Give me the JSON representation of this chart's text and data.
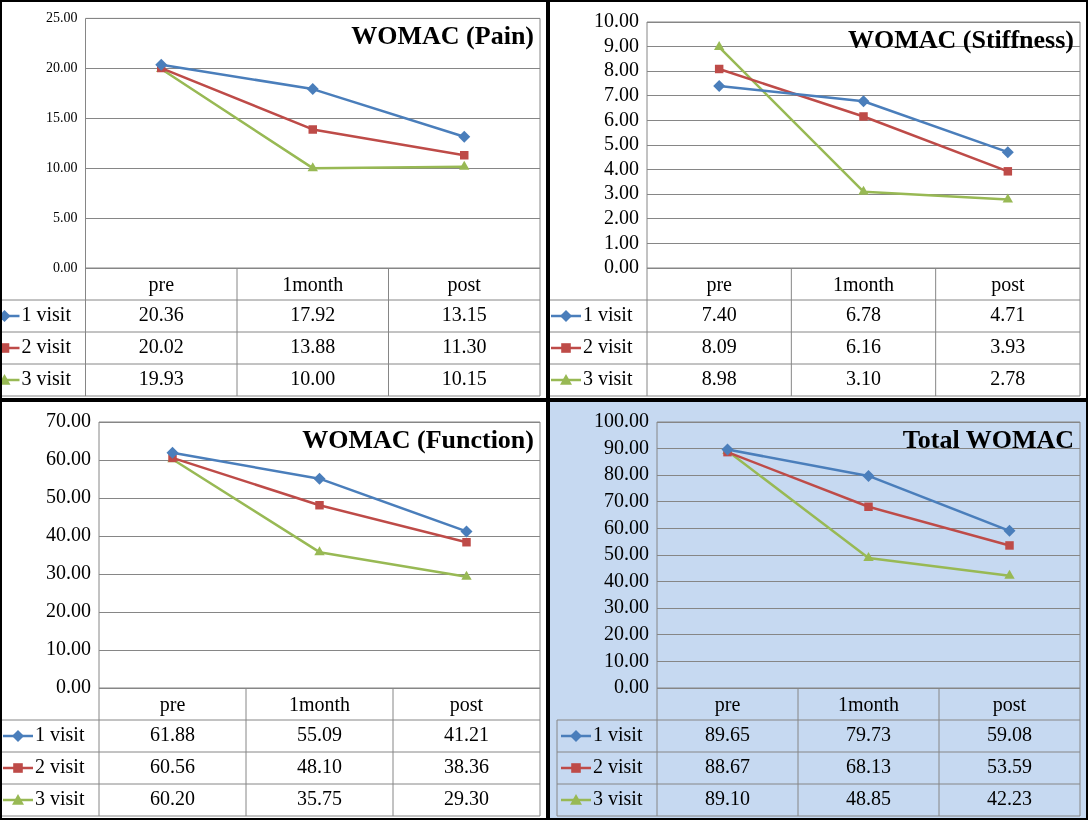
{
  "chart_data": [
    {
      "type": "line",
      "title": "WOMAC (Pain)",
      "categories": [
        "pre",
        "1month",
        "post"
      ],
      "ylim": [
        0,
        25
      ],
      "yticks": [
        {
          "value": 0,
          "label": "0.00"
        },
        {
          "value": 5,
          "label": "5.00"
        },
        {
          "value": 10,
          "label": "10.00"
        },
        {
          "value": 15,
          "label": "15.00"
        },
        {
          "value": 20,
          "label": "20.00"
        },
        {
          "value": 25,
          "label": "25.00"
        }
      ],
      "grid": "y",
      "legend": "bottom",
      "series": [
        {
          "name": "1 visit",
          "color": "#4a7ebb",
          "marker": "diamond",
          "values": [
            20.36,
            17.92,
            13.15
          ],
          "value_labels": [
            "20.36",
            "17.92",
            "13.15"
          ]
        },
        {
          "name": "2 visit",
          "color": "#be4b48",
          "marker": "square",
          "values": [
            20.02,
            13.88,
            11.3
          ],
          "value_labels": [
            "20.02",
            "13.88",
            "11.30"
          ]
        },
        {
          "name": "3 visit",
          "color": "#98b954",
          "marker": "triangle",
          "values": [
            19.93,
            10.0,
            10.15
          ],
          "value_labels": [
            "19.93",
            "10.00",
            "10.15"
          ]
        }
      ]
    },
    {
      "type": "line",
      "title": "WOMAC (Stiffness)",
      "categories": [
        "pre",
        "1month",
        "post"
      ],
      "ylim": [
        0,
        10
      ],
      "yticks": [
        {
          "value": 0,
          "label": "0.00"
        },
        {
          "value": 1,
          "label": "1.00"
        },
        {
          "value": 2,
          "label": "2.00"
        },
        {
          "value": 3,
          "label": "3.00"
        },
        {
          "value": 4,
          "label": "4.00"
        },
        {
          "value": 5,
          "label": "5.00"
        },
        {
          "value": 6,
          "label": "6.00"
        },
        {
          "value": 7,
          "label": "7.00"
        },
        {
          "value": 8,
          "label": "8.00"
        },
        {
          "value": 9,
          "label": "9.00"
        },
        {
          "value": 10,
          "label": "10.00"
        }
      ],
      "grid": "y",
      "legend": "bottom",
      "series": [
        {
          "name": "1 visit",
          "color": "#4a7ebb",
          "marker": "diamond",
          "values": [
            7.4,
            6.78,
            4.71
          ],
          "value_labels": [
            "7.40",
            "6.78",
            "4.71"
          ]
        },
        {
          "name": "2 visit",
          "color": "#be4b48",
          "marker": "square",
          "values": [
            8.09,
            6.16,
            3.93
          ],
          "value_labels": [
            "8.09",
            "6.16",
            "3.93"
          ]
        },
        {
          "name": "3 visit",
          "color": "#98b954",
          "marker": "triangle",
          "values": [
            8.98,
            3.1,
            2.78
          ],
          "value_labels": [
            "8.98",
            "3.10",
            "2.78"
          ]
        }
      ]
    },
    {
      "type": "line",
      "title": "WOMAC (Function)",
      "categories": [
        "pre",
        "1month",
        "post"
      ],
      "ylim": [
        0,
        70
      ],
      "yticks": [
        {
          "value": 0,
          "label": "0.00"
        },
        {
          "value": 10,
          "label": "10.00"
        },
        {
          "value": 20,
          "label": "20.00"
        },
        {
          "value": 30,
          "label": "30.00"
        },
        {
          "value": 40,
          "label": "40.00"
        },
        {
          "value": 50,
          "label": "50.00"
        },
        {
          "value": 60,
          "label": "60.00"
        },
        {
          "value": 70,
          "label": "70.00"
        }
      ],
      "grid": "y",
      "legend": "bottom",
      "series": [
        {
          "name": "1 visit",
          "color": "#4a7ebb",
          "marker": "diamond",
          "values": [
            61.88,
            55.09,
            41.21
          ],
          "value_labels": [
            "61.88",
            "55.09",
            "41.21"
          ]
        },
        {
          "name": "2 visit",
          "color": "#be4b48",
          "marker": "square",
          "values": [
            60.56,
            48.1,
            38.36
          ],
          "value_labels": [
            "60.56",
            "48.10",
            "38.36"
          ]
        },
        {
          "name": "3 visit",
          "color": "#98b954",
          "marker": "triangle",
          "values": [
            60.2,
            35.75,
            29.3
          ],
          "value_labels": [
            "60.20",
            "35.75",
            "29.30"
          ]
        }
      ]
    },
    {
      "type": "line",
      "title": "Total WOMAC",
      "categories": [
        "pre",
        "1month",
        "post"
      ],
      "ylim": [
        0,
        100
      ],
      "yticks": [
        {
          "value": 0,
          "label": "0.00"
        },
        {
          "value": 10,
          "label": "10.00"
        },
        {
          "value": 20,
          "label": "20.00"
        },
        {
          "value": 30,
          "label": "30.00"
        },
        {
          "value": 40,
          "label": "40.00"
        },
        {
          "value": 50,
          "label": "50.00"
        },
        {
          "value": 60,
          "label": "60.00"
        },
        {
          "value": 70,
          "label": "70.00"
        },
        {
          "value": 80,
          "label": "80.00"
        },
        {
          "value": 90,
          "label": "90.00"
        },
        {
          "value": 100,
          "label": "100.00"
        }
      ],
      "grid": "y",
      "legend": "bottom",
      "series": [
        {
          "name": "1 visit",
          "color": "#4a7ebb",
          "marker": "diamond",
          "values": [
            89.65,
            79.73,
            59.08
          ],
          "value_labels": [
            "89.65",
            "79.73",
            "59.08"
          ]
        },
        {
          "name": "2 visit",
          "color": "#be4b48",
          "marker": "square",
          "values": [
            88.67,
            68.13,
            53.59
          ],
          "value_labels": [
            "88.67",
            "68.13",
            "53.59"
          ]
        },
        {
          "name": "3 visit",
          "color": "#98b954",
          "marker": "triangle",
          "values": [
            89.1,
            48.85,
            42.23
          ],
          "value_labels": [
            "89.10",
            "48.85",
            "42.23"
          ]
        }
      ]
    }
  ]
}
